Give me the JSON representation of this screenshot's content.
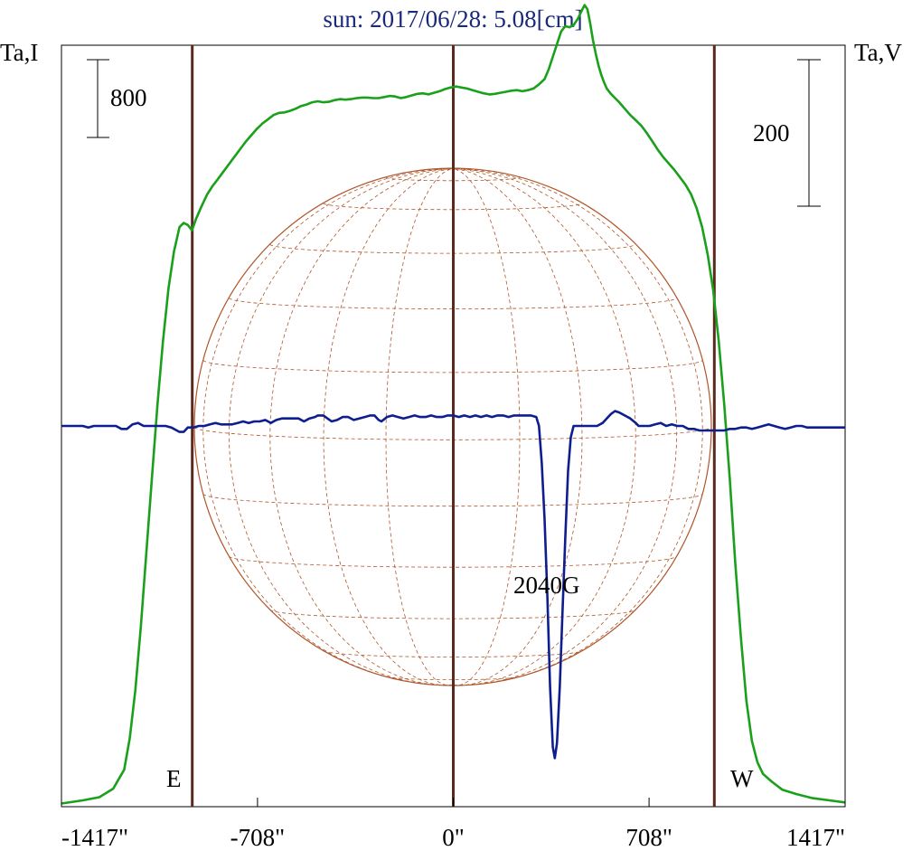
{
  "chart_data": {
    "type": "line",
    "title": "sun: 2017/06/28: 5.08[cm]",
    "y_left_label": "Ta,I",
    "y_right_label": "Ta,V",
    "scale_left_label": "800",
    "scale_right_label": "200",
    "east_label": "E",
    "west_label": "W",
    "annotation": "2040G",
    "xlim": [
      -1417,
      1417
    ],
    "x_ticks": [
      -1417,
      -708,
      0,
      708,
      1417
    ],
    "x_tick_labels": [
      "-1417\"",
      "-708\"",
      "0\"",
      "708\"",
      "1417\""
    ],
    "vertical_lines_x": [
      -944,
      0,
      944
    ],
    "intensity_ylim": [
      0,
      7200
    ],
    "polarization_ylim": [
      -1020,
      1020
    ],
    "series": [
      {
        "name": "I",
        "color": "#1aa01a",
        "points": [
          [
            -1417,
            30
          ],
          [
            -1340,
            60
          ],
          [
            -1280,
            90
          ],
          [
            -1230,
            170
          ],
          [
            -1190,
            350
          ],
          [
            -1170,
            650
          ],
          [
            -1150,
            1100
          ],
          [
            -1130,
            1700
          ],
          [
            -1110,
            2400
          ],
          [
            -1090,
            3100
          ],
          [
            -1070,
            3800
          ],
          [
            -1050,
            4400
          ],
          [
            -1030,
            4900
          ],
          [
            -1010,
            5250
          ],
          [
            -990,
            5480
          ],
          [
            -975,
            5520
          ],
          [
            -960,
            5500
          ],
          [
            -945,
            5450
          ],
          [
            -930,
            5560
          ],
          [
            -910,
            5680
          ],
          [
            -890,
            5790
          ],
          [
            -870,
            5870
          ],
          [
            -850,
            5940
          ],
          [
            -830,
            6010
          ],
          [
            -810,
            6080
          ],
          [
            -790,
            6150
          ],
          [
            -770,
            6220
          ],
          [
            -750,
            6290
          ],
          [
            -730,
            6350
          ],
          [
            -710,
            6410
          ],
          [
            -690,
            6460
          ],
          [
            -670,
            6500
          ],
          [
            -650,
            6540
          ],
          [
            -630,
            6560
          ],
          [
            -610,
            6565
          ],
          [
            -590,
            6580
          ],
          [
            -570,
            6600
          ],
          [
            -550,
            6625
          ],
          [
            -530,
            6640
          ],
          [
            -510,
            6660
          ],
          [
            -490,
            6670
          ],
          [
            -470,
            6660
          ],
          [
            -450,
            6665
          ],
          [
            -430,
            6680
          ],
          [
            -410,
            6690
          ],
          [
            -390,
            6685
          ],
          [
            -370,
            6690
          ],
          [
            -350,
            6700
          ],
          [
            -330,
            6705
          ],
          [
            -310,
            6705
          ],
          [
            -290,
            6700
          ],
          [
            -270,
            6700
          ],
          [
            -250,
            6710
          ],
          [
            -230,
            6720
          ],
          [
            -210,
            6715
          ],
          [
            -190,
            6700
          ],
          [
            -170,
            6710
          ],
          [
            -150,
            6725
          ],
          [
            -130,
            6740
          ],
          [
            -110,
            6745
          ],
          [
            -90,
            6735
          ],
          [
            -70,
            6750
          ],
          [
            -50,
            6765
          ],
          [
            -30,
            6785
          ],
          [
            -10,
            6800
          ],
          [
            10,
            6810
          ],
          [
            30,
            6800
          ],
          [
            50,
            6790
          ],
          [
            70,
            6775
          ],
          [
            90,
            6760
          ],
          [
            110,
            6745
          ],
          [
            130,
            6735
          ],
          [
            150,
            6740
          ],
          [
            170,
            6750
          ],
          [
            190,
            6760
          ],
          [
            210,
            6770
          ],
          [
            230,
            6775
          ],
          [
            250,
            6765
          ],
          [
            270,
            6775
          ],
          [
            290,
            6790
          ],
          [
            310,
            6830
          ],
          [
            330,
            6880
          ],
          [
            345,
            6970
          ],
          [
            360,
            7090
          ],
          [
            375,
            7210
          ],
          [
            390,
            7330
          ],
          [
            405,
            7380
          ],
          [
            420,
            7370
          ],
          [
            435,
            7390
          ],
          [
            450,
            7450
          ],
          [
            465,
            7530
          ],
          [
            475,
            7580
          ],
          [
            485,
            7540
          ],
          [
            495,
            7410
          ],
          [
            505,
            7250
          ],
          [
            515,
            7120
          ],
          [
            525,
            7010
          ],
          [
            535,
            6920
          ],
          [
            545,
            6850
          ],
          [
            555,
            6790
          ],
          [
            570,
            6740
          ],
          [
            585,
            6700
          ],
          [
            600,
            6660
          ],
          [
            620,
            6600
          ],
          [
            640,
            6540
          ],
          [
            660,
            6490
          ],
          [
            680,
            6440
          ],
          [
            700,
            6370
          ],
          [
            720,
            6290
          ],
          [
            740,
            6210
          ],
          [
            760,
            6140
          ],
          [
            780,
            6080
          ],
          [
            800,
            6020
          ],
          [
            820,
            5950
          ],
          [
            840,
            5880
          ],
          [
            860,
            5790
          ],
          [
            880,
            5660
          ],
          [
            900,
            5480
          ],
          [
            920,
            5220
          ],
          [
            940,
            4880
          ],
          [
            960,
            4400
          ],
          [
            980,
            3800
          ],
          [
            1000,
            3100
          ],
          [
            1020,
            2300
          ],
          [
            1040,
            1600
          ],
          [
            1060,
            1000
          ],
          [
            1080,
            620
          ],
          [
            1100,
            420
          ],
          [
            1120,
            310
          ],
          [
            1150,
            240
          ],
          [
            1190,
            160
          ],
          [
            1240,
            120
          ],
          [
            1300,
            80
          ],
          [
            1360,
            60
          ],
          [
            1417,
            40
          ]
        ]
      },
      {
        "name": "V",
        "color": "#0f1e8f",
        "points": [
          [
            -1417,
            0
          ],
          [
            -1340,
            0
          ],
          [
            -1320,
            -4
          ],
          [
            -1300,
            0
          ],
          [
            -1220,
            0
          ],
          [
            -1200,
            -8
          ],
          [
            -1180,
            -8
          ],
          [
            -1160,
            4
          ],
          [
            -1140,
            8
          ],
          [
            -1120,
            0
          ],
          [
            -1060,
            0
          ],
          [
            -1040,
            0
          ],
          [
            -1020,
            -4
          ],
          [
            -1000,
            -12
          ],
          [
            -990,
            -16
          ],
          [
            -975,
            -16
          ],
          [
            -960,
            -4
          ],
          [
            -940,
            -4
          ],
          [
            -920,
            0
          ],
          [
            -900,
            0
          ],
          [
            -880,
            4
          ],
          [
            -860,
            8
          ],
          [
            -840,
            4
          ],
          [
            -820,
            4
          ],
          [
            -800,
            4
          ],
          [
            -780,
            8
          ],
          [
            -760,
            12
          ],
          [
            -740,
            8
          ],
          [
            -720,
            12
          ],
          [
            -700,
            12
          ],
          [
            -680,
            16
          ],
          [
            -660,
            8
          ],
          [
            -640,
            16
          ],
          [
            -620,
            20
          ],
          [
            -600,
            20
          ],
          [
            -580,
            20
          ],
          [
            -560,
            20
          ],
          [
            -540,
            12
          ],
          [
            -520,
            20
          ],
          [
            -500,
            24
          ],
          [
            -490,
            28
          ],
          [
            -470,
            28
          ],
          [
            -455,
            20
          ],
          [
            -440,
            12
          ],
          [
            -420,
            16
          ],
          [
            -400,
            24
          ],
          [
            -380,
            24
          ],
          [
            -360,
            16
          ],
          [
            -340,
            20
          ],
          [
            -320,
            24
          ],
          [
            -300,
            28
          ],
          [
            -285,
            28
          ],
          [
            -270,
            16
          ],
          [
            -260,
            12
          ],
          [
            -240,
            24
          ],
          [
            -220,
            28
          ],
          [
            -200,
            24
          ],
          [
            -180,
            20
          ],
          [
            -160,
            24
          ],
          [
            -140,
            28
          ],
          [
            -120,
            24
          ],
          [
            -100,
            24
          ],
          [
            -80,
            28
          ],
          [
            -60,
            24
          ],
          [
            -40,
            24
          ],
          [
            -20,
            28
          ],
          [
            0,
            28
          ],
          [
            20,
            24
          ],
          [
            40,
            28
          ],
          [
            60,
            24
          ],
          [
            80,
            28
          ],
          [
            100,
            24
          ],
          [
            120,
            28
          ],
          [
            140,
            24
          ],
          [
            160,
            28
          ],
          [
            180,
            28
          ],
          [
            200,
            24
          ],
          [
            220,
            28
          ],
          [
            240,
            28
          ],
          [
            260,
            28
          ],
          [
            280,
            28
          ],
          [
            300,
            24
          ],
          [
            310,
            0
          ],
          [
            320,
            -100
          ],
          [
            330,
            -250
          ],
          [
            340,
            -450
          ],
          [
            350,
            -700
          ],
          [
            360,
            -860
          ],
          [
            367,
            -890
          ],
          [
            375,
            -850
          ],
          [
            385,
            -700
          ],
          [
            395,
            -500
          ],
          [
            405,
            -300
          ],
          [
            415,
            -120
          ],
          [
            425,
            -30
          ],
          [
            435,
            0
          ],
          [
            445,
            0
          ],
          [
            460,
            0
          ],
          [
            480,
            0
          ],
          [
            500,
            0
          ],
          [
            520,
            0
          ],
          [
            540,
            8
          ],
          [
            555,
            20
          ],
          [
            570,
            32
          ],
          [
            585,
            40
          ],
          [
            600,
            36
          ],
          [
            620,
            28
          ],
          [
            640,
            20
          ],
          [
            660,
            8
          ],
          [
            670,
            0
          ],
          [
            690,
            0
          ],
          [
            710,
            0
          ],
          [
            730,
            4
          ],
          [
            750,
            8
          ],
          [
            770,
            0
          ],
          [
            790,
            4
          ],
          [
            810,
            0
          ],
          [
            830,
            0
          ],
          [
            850,
            -8
          ],
          [
            870,
            -8
          ],
          [
            890,
            -12
          ],
          [
            910,
            -12
          ],
          [
            930,
            -12
          ],
          [
            950,
            -12
          ],
          [
            980,
            -12
          ],
          [
            1000,
            -8
          ],
          [
            1020,
            -8
          ],
          [
            1040,
            -4
          ],
          [
            1060,
            -4
          ],
          [
            1080,
            -8
          ],
          [
            1100,
            -4
          ],
          [
            1120,
            0
          ],
          [
            1140,
            4
          ],
          [
            1160,
            0
          ],
          [
            1180,
            -4
          ],
          [
            1200,
            -8
          ],
          [
            1220,
            -4
          ],
          [
            1240,
            0
          ],
          [
            1260,
            0
          ],
          [
            1280,
            -4
          ],
          [
            1300,
            -4
          ],
          [
            1330,
            -4
          ],
          [
            1360,
            -4
          ],
          [
            1417,
            -4
          ]
        ]
      }
    ],
    "grid": false,
    "legend": "none"
  },
  "colors": {
    "title": "#1a2a7a",
    "axes": "#000000",
    "vertical_lines": "#5a2a1e",
    "sun_disk": "#b0562a"
  }
}
